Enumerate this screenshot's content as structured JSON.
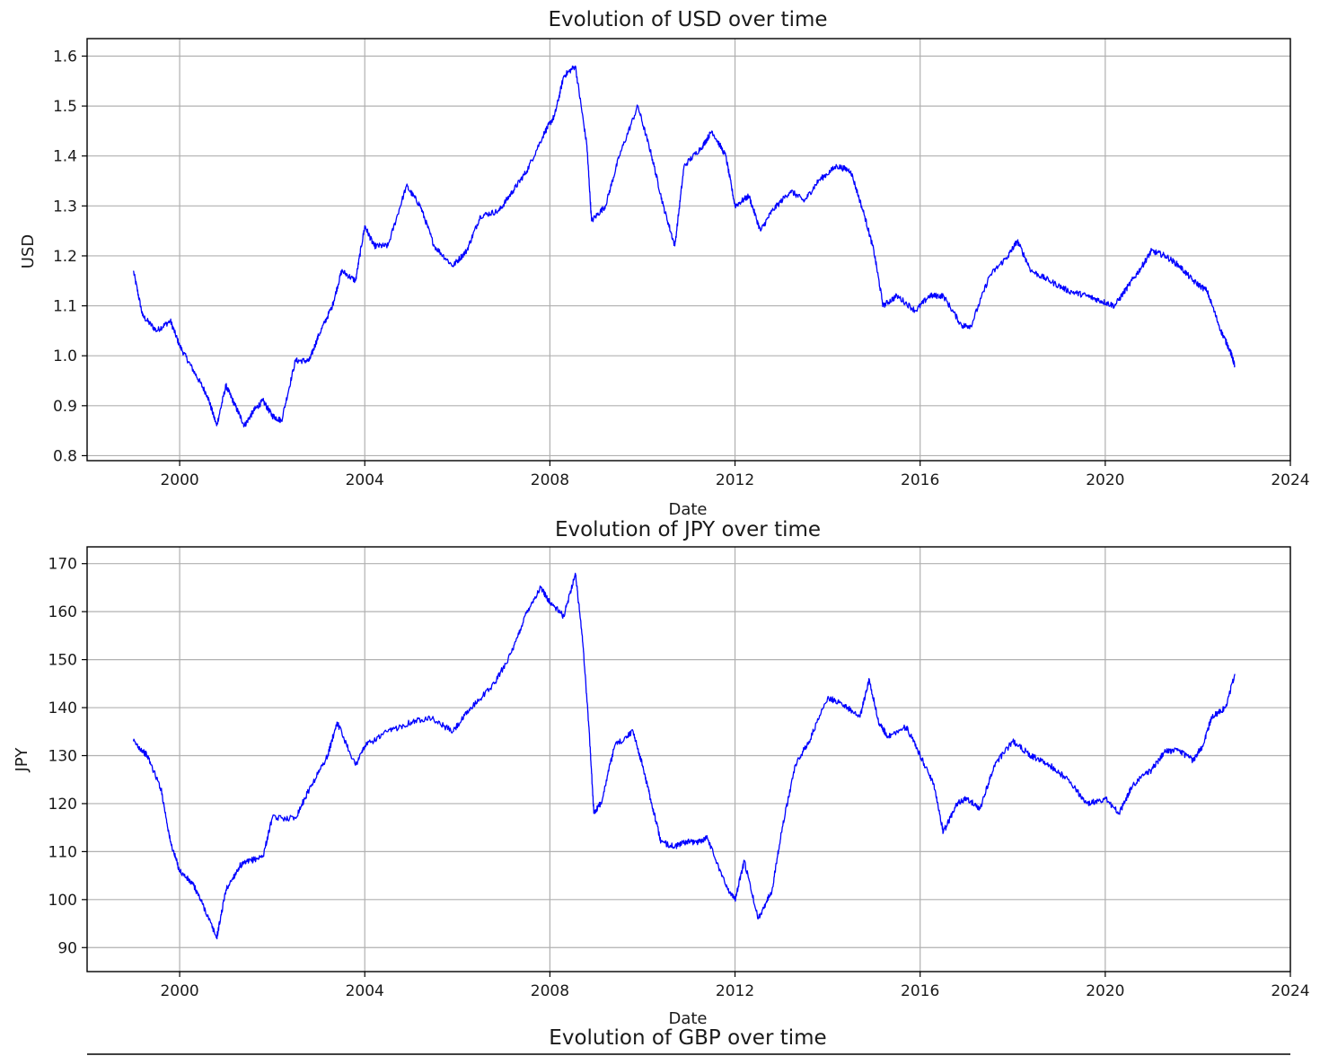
{
  "chart_data": [
    {
      "type": "line",
      "title": "Evolution of USD over time",
      "xlabel": "Date",
      "ylabel": "USD",
      "xlim": [
        1998,
        2024
      ],
      "ylim": [
        0.79,
        1.635
      ],
      "xticks": [
        "2000",
        "2004",
        "2008",
        "2012",
        "2016",
        "2020",
        "2024"
      ],
      "yticks": [
        "0.8",
        "0.9",
        "1.0",
        "1.1",
        "1.2",
        "1.3",
        "1.4",
        "1.5",
        "1.6"
      ],
      "grid": true,
      "line_color": "#0000ff",
      "series": [
        {
          "x": [
            1999.0,
            1999.2,
            1999.5,
            1999.8,
            2000.0,
            2000.3,
            2000.6,
            2000.8,
            2001.0,
            2001.2,
            2001.4,
            2001.6,
            2001.8,
            2002.0,
            2002.2,
            2002.5,
            2002.8,
            2003.0,
            2003.3,
            2003.5,
            2003.8,
            2004.0,
            2004.2,
            2004.5,
            2004.9,
            2005.2,
            2005.5,
            2005.9,
            2006.2,
            2006.5,
            2006.9,
            2007.2,
            2007.5,
            2007.9,
            2008.1,
            2008.3,
            2008.55,
            2008.8,
            2008.9,
            2009.2,
            2009.5,
            2009.9,
            2010.2,
            2010.45,
            2010.7,
            2010.9,
            2011.3,
            2011.5,
            2011.8,
            2012.0,
            2012.3,
            2012.55,
            2012.8,
            2013.2,
            2013.5,
            2013.8,
            2014.2,
            2014.5,
            2014.8,
            2015.0,
            2015.2,
            2015.5,
            2015.9,
            2016.2,
            2016.5,
            2016.9,
            2017.1,
            2017.5,
            2017.9,
            2018.1,
            2018.4,
            2018.8,
            2019.2,
            2019.6,
            2019.9,
            2020.2,
            2020.5,
            2020.8,
            2021.0,
            2021.3,
            2021.6,
            2021.9,
            2022.2,
            2022.5,
            2022.7,
            2022.8
          ],
          "y": [
            1.17,
            1.08,
            1.05,
            1.07,
            1.02,
            0.97,
            0.92,
            0.86,
            0.94,
            0.9,
            0.86,
            0.89,
            0.91,
            0.88,
            0.87,
            0.99,
            0.99,
            1.04,
            1.1,
            1.17,
            1.15,
            1.26,
            1.22,
            1.22,
            1.34,
            1.3,
            1.22,
            1.18,
            1.21,
            1.28,
            1.29,
            1.33,
            1.37,
            1.45,
            1.48,
            1.56,
            1.58,
            1.42,
            1.27,
            1.3,
            1.4,
            1.5,
            1.4,
            1.3,
            1.22,
            1.38,
            1.42,
            1.45,
            1.4,
            1.3,
            1.32,
            1.25,
            1.29,
            1.33,
            1.31,
            1.35,
            1.38,
            1.37,
            1.28,
            1.21,
            1.1,
            1.12,
            1.09,
            1.12,
            1.12,
            1.06,
            1.06,
            1.16,
            1.2,
            1.23,
            1.17,
            1.15,
            1.13,
            1.12,
            1.11,
            1.1,
            1.14,
            1.18,
            1.21,
            1.2,
            1.18,
            1.15,
            1.13,
            1.05,
            1.01,
            0.98
          ]
        }
      ]
    },
    {
      "type": "line",
      "title": "Evolution of JPY over time",
      "xlabel": "Date",
      "ylabel": "JPY",
      "xlim": [
        1998,
        2024
      ],
      "ylim": [
        85,
        173.5
      ],
      "xticks": [
        "2000",
        "2004",
        "2008",
        "2012",
        "2016",
        "2020",
        "2024"
      ],
      "yticks": [
        "90",
        "100",
        "110",
        "120",
        "130",
        "140",
        "150",
        "160",
        "170"
      ],
      "grid": true,
      "line_color": "#0000ff",
      "series": [
        {
          "x": [
            1999.0,
            1999.3,
            1999.6,
            1999.8,
            2000.0,
            2000.3,
            2000.5,
            2000.8,
            2001.0,
            2001.3,
            2001.5,
            2001.8,
            2002.0,
            2002.5,
            2002.8,
            2003.2,
            2003.4,
            2003.8,
            2004.0,
            2004.5,
            2005.0,
            2005.4,
            2005.9,
            2006.3,
            2006.8,
            2007.2,
            2007.5,
            2007.8,
            2008.0,
            2008.3,
            2008.55,
            2008.7,
            2008.85,
            2008.95,
            2009.1,
            2009.4,
            2009.8,
            2010.0,
            2010.2,
            2010.4,
            2010.7,
            2010.9,
            2011.2,
            2011.4,
            2011.8,
            2012.0,
            2012.2,
            2012.5,
            2012.8,
            2013.0,
            2013.3,
            2013.6,
            2014.0,
            2014.3,
            2014.7,
            2014.9,
            2015.1,
            2015.3,
            2015.7,
            2016.0,
            2016.3,
            2016.5,
            2016.8,
            2017.0,
            2017.3,
            2017.6,
            2018.0,
            2018.4,
            2018.8,
            2019.2,
            2019.6,
            2020.0,
            2020.3,
            2020.6,
            2021.0,
            2021.3,
            2021.6,
            2021.9,
            2022.1,
            2022.3,
            2022.6,
            2022.8
          ],
          "y": [
            133,
            130,
            123,
            112,
            106,
            103,
            99,
            92,
            102,
            107,
            108,
            109,
            117,
            117,
            123,
            130,
            137,
            128,
            132,
            135,
            137,
            138,
            135,
            140,
            145,
            152,
            160,
            165,
            162,
            159,
            168,
            155,
            135,
            118,
            120,
            132,
            135,
            128,
            120,
            112,
            111,
            112,
            112,
            113,
            103,
            100,
            108,
            96,
            102,
            114,
            128,
            133,
            142,
            141,
            138,
            146,
            137,
            134,
            136,
            130,
            124,
            114,
            120,
            121,
            119,
            128,
            133,
            130,
            128,
            125,
            120,
            121,
            118,
            124,
            127,
            131,
            131,
            129,
            132,
            138,
            140,
            147
          ]
        }
      ]
    },
    {
      "type": "line",
      "title": "Evolution of GBP over time"
    }
  ]
}
